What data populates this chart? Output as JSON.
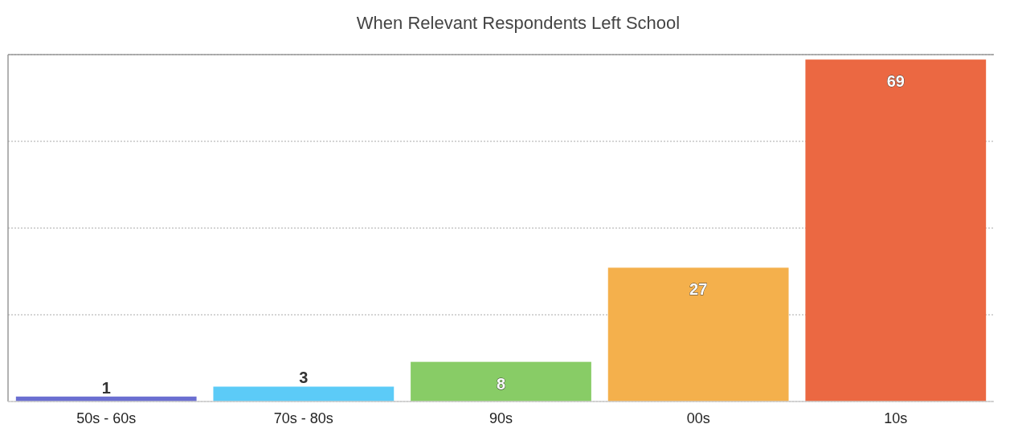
{
  "chart_data": {
    "type": "bar",
    "title": "When Relevant Respondents Left School",
    "categories": [
      "50s - 60s",
      "70s - 80s",
      "90s",
      "00s",
      "10s"
    ],
    "values": [
      1,
      3,
      8,
      27,
      69
    ],
    "colors": [
      "#6b6fd1",
      "#5ccbf7",
      "#88cc66",
      "#f4b04c",
      "#eb6842"
    ],
    "ylim": [
      0,
      70
    ],
    "yticks": [
      {
        "value": 0,
        "label": null
      },
      {
        "value": 17.5,
        "label": null
      },
      {
        "value": 35,
        "label": null
      },
      {
        "value": 52.5,
        "label": null
      },
      {
        "value": 70,
        "label": null
      }
    ],
    "grid": "y",
    "data_labels": true,
    "tick_labels": "x"
  }
}
